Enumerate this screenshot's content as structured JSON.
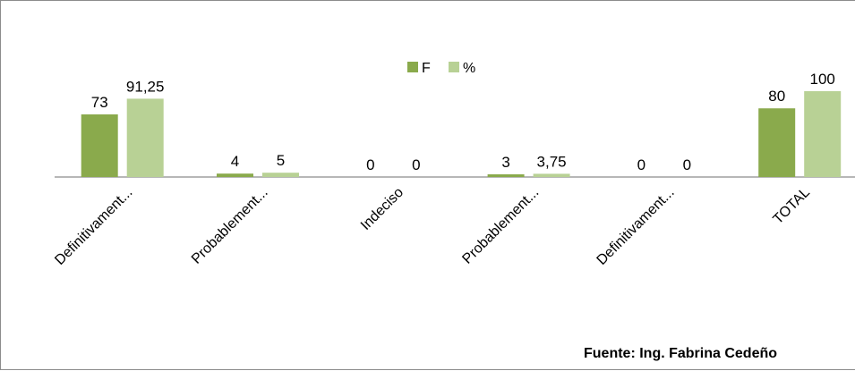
{
  "chart_data": {
    "type": "bar",
    "categories": [
      "Definitivament...",
      "Probablement...",
      "Indeciso",
      "Probablement...",
      "Definitivament...",
      "TOTAL"
    ],
    "series": [
      {
        "name": "F",
        "values": [
          73,
          4,
          0,
          3,
          0,
          80
        ],
        "labels": [
          "73",
          "4",
          "0",
          "3",
          "0",
          "80"
        ],
        "color": "#8aaa4c"
      },
      {
        "name": "%",
        "values": [
          91.25,
          5,
          0,
          3.75,
          0,
          100
        ],
        "labels": [
          "91,25",
          "5",
          "0",
          "3,75",
          "0",
          "100"
        ],
        "color": "#b8d195"
      }
    ],
    "ylim": [
      0,
      100
    ],
    "grid": false,
    "legend": "top-center",
    "axis_line_color": "#8c8c8c"
  },
  "source": "Fuente: Ing. Fabrina Cedeño"
}
